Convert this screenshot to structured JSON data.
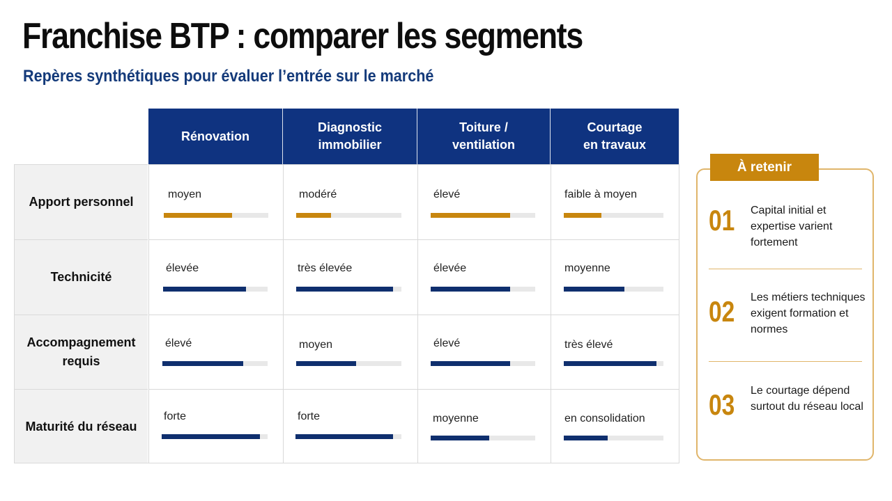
{
  "title": "Franchise BTP : comparer les segments",
  "subtitle": "Repères synthétiques pour évaluer l’entrée sur le marché",
  "columns": [
    {
      "label": "Rénovation"
    },
    {
      "label": "Diagnostic\nimmobilier"
    },
    {
      "label": "Toiture /\nventilation"
    },
    {
      "label": "Courtage\nen travaux"
    }
  ],
  "rows": [
    {
      "label": "Apport personnel",
      "bar_color": "#c8860e",
      "cells": [
        {
          "text": "moyen",
          "level": 0.65
        },
        {
          "text": "modéré",
          "level": 0.33
        },
        {
          "text": "élevé",
          "level": 0.76
        },
        {
          "text": "faible à moyen",
          "level": 0.38
        }
      ]
    },
    {
      "label": "Technicité",
      "bar_color": "#0f2f6e",
      "cells": [
        {
          "text": "élevée",
          "level": 0.79
        },
        {
          "text": "très élevée",
          "level": 0.92
        },
        {
          "text": "élevée",
          "level": 0.76
        },
        {
          "text": "moyenne",
          "level": 0.61
        }
      ]
    },
    {
      "label": "Accompagnement\nrequis",
      "bar_color": "#0f2f6e",
      "cells": [
        {
          "text": "élevé",
          "level": 0.77
        },
        {
          "text": "moyen",
          "level": 0.57
        },
        {
          "text": "élevé",
          "level": 0.76
        },
        {
          "text": "très élevé",
          "level": 0.93
        }
      ]
    },
    {
      "label": "Maturité du réseau",
      "bar_color": "#0f2f6e",
      "cells": [
        {
          "text": "forte",
          "level": 0.93
        },
        {
          "text": "forte",
          "level": 0.92
        },
        {
          "text": "moyenne",
          "level": 0.56
        },
        {
          "text": "en consolidation",
          "level": 0.44
        }
      ]
    }
  ],
  "panel": {
    "title": "À retenir",
    "items": [
      {
        "num": "01",
        "text": "Capital initial et expertise varient fortement"
      },
      {
        "num": "02",
        "text": "Les métiers techniques exigent formation et normes"
      },
      {
        "num": "03",
        "text": "Le courtage dépend surtout du réseau local"
      }
    ]
  }
}
